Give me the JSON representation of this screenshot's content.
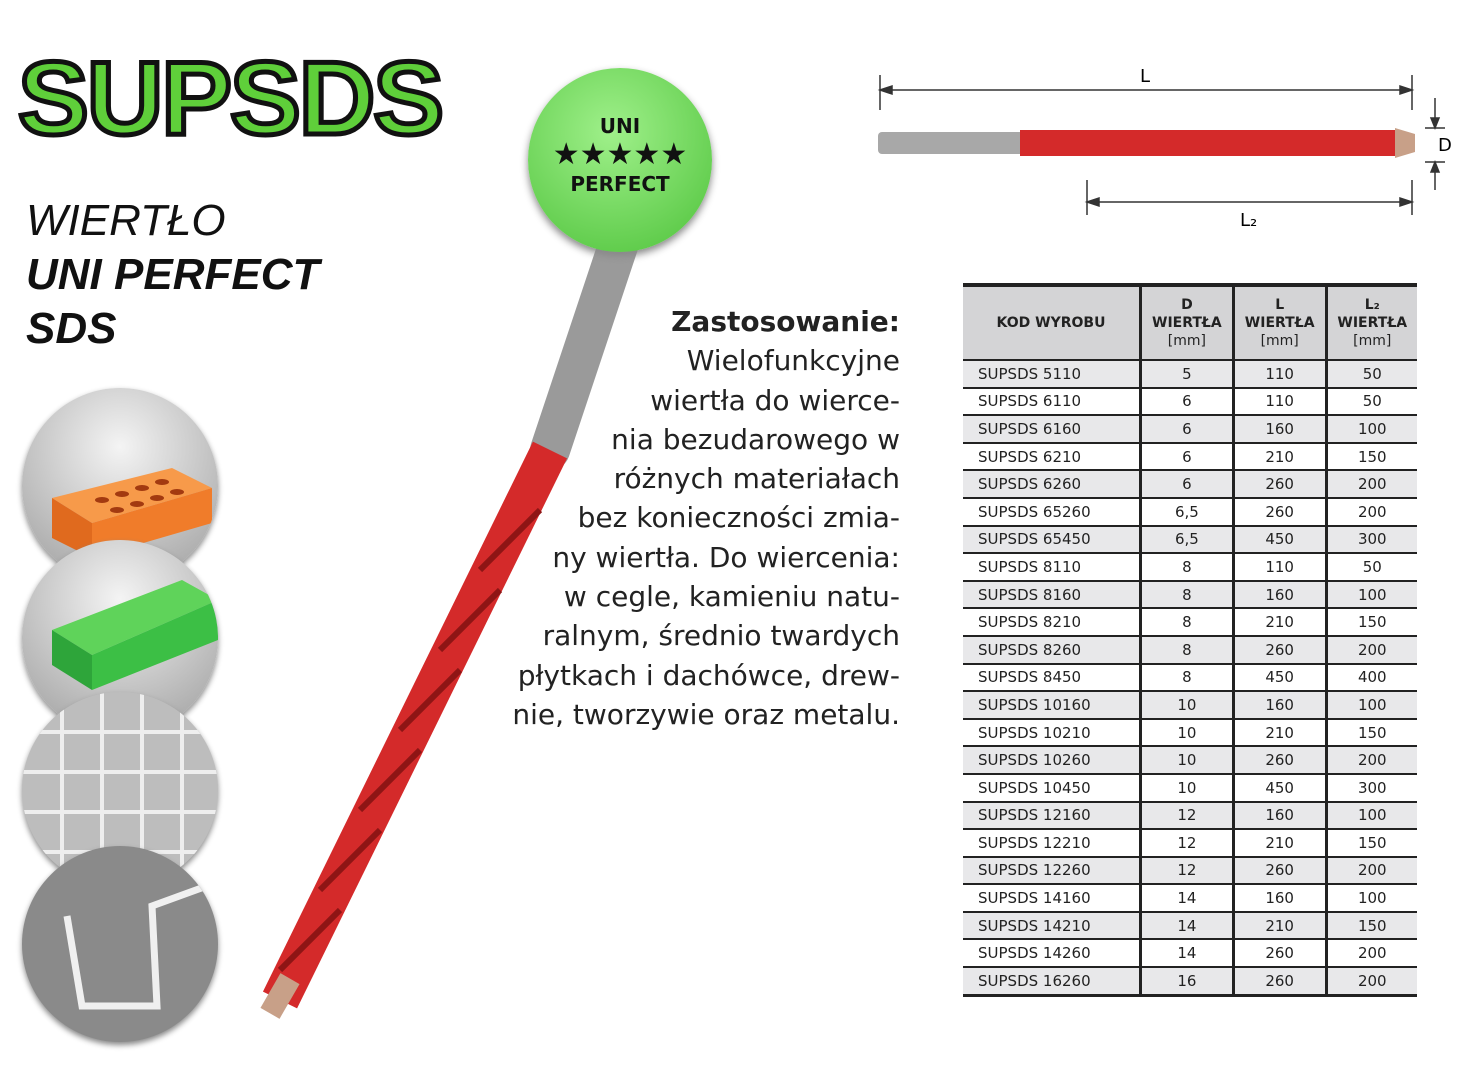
{
  "brand": "SUPSDS",
  "title_lines": [
    "WIERTŁO",
    "UNI PERFECT",
    "SDS"
  ],
  "badge": {
    "top": "UNI",
    "stars": "★★★★★",
    "bottom": "PERFECT",
    "rating": 5,
    "color": "#5fcf3a"
  },
  "description": {
    "heading": "Zastosowanie:",
    "lines": [
      "Wielofunkcyjne",
      "wiertła do wierce-",
      "nia bezudarowego w",
      "różnych materiałach",
      "bez konieczności zmia-",
      "ny wiertła. Do wiercenia:",
      "w cegle, kamieniu natu-",
      "ralnym, średnio twardych",
      "płytkach i dachówce, drew-",
      "nie, tworzywie oraz metalu."
    ]
  },
  "diagram": {
    "L": "L",
    "L2": "L₂",
    "D": "D"
  },
  "materials": [
    "brick-icon",
    "wood-icon",
    "tile-icon",
    "metal-profile-icon"
  ],
  "table": {
    "headers": [
      {
        "t": "KOD WYROBU",
        "s": ""
      },
      {
        "t": "D\nWIERTŁA",
        "s": "[mm]"
      },
      {
        "t": "L\nWIERTŁA",
        "s": "[mm]"
      },
      {
        "t": "L₂\nWIERTŁA",
        "s": "[mm]"
      }
    ],
    "rows": [
      [
        "SUPSDS 5110",
        "5",
        "110",
        "50"
      ],
      [
        "SUPSDS 6110",
        "6",
        "110",
        "50"
      ],
      [
        "SUPSDS 6160",
        "6",
        "160",
        "100"
      ],
      [
        "SUPSDS 6210",
        "6",
        "210",
        "150"
      ],
      [
        "SUPSDS 6260",
        "6",
        "260",
        "200"
      ],
      [
        "SUPSDS 65260",
        "6,5",
        "260",
        "200"
      ],
      [
        "SUPSDS 65450",
        "6,5",
        "450",
        "300"
      ],
      [
        "SUPSDS 8110",
        "8",
        "110",
        "50"
      ],
      [
        "SUPSDS 8160",
        "8",
        "160",
        "100"
      ],
      [
        "SUPSDS 8210",
        "8",
        "210",
        "150"
      ],
      [
        "SUPSDS 8260",
        "8",
        "260",
        "200"
      ],
      [
        "SUPSDS 8450",
        "8",
        "450",
        "400"
      ],
      [
        "SUPSDS 10160",
        "10",
        "160",
        "100"
      ],
      [
        "SUPSDS 10210",
        "10",
        "210",
        "150"
      ],
      [
        "SUPSDS 10260",
        "10",
        "260",
        "200"
      ],
      [
        "SUPSDS 10450",
        "10",
        "450",
        "300"
      ],
      [
        "SUPSDS 12160",
        "12",
        "160",
        "100"
      ],
      [
        "SUPSDS 12210",
        "12",
        "210",
        "150"
      ],
      [
        "SUPSDS 12260",
        "12",
        "260",
        "200"
      ],
      [
        "SUPSDS 14160",
        "14",
        "160",
        "100"
      ],
      [
        "SUPSDS 14210",
        "14",
        "210",
        "150"
      ],
      [
        "SUPSDS 14260",
        "14",
        "260",
        "200"
      ],
      [
        "SUPSDS 16260",
        "16",
        "260",
        "200"
      ]
    ]
  }
}
